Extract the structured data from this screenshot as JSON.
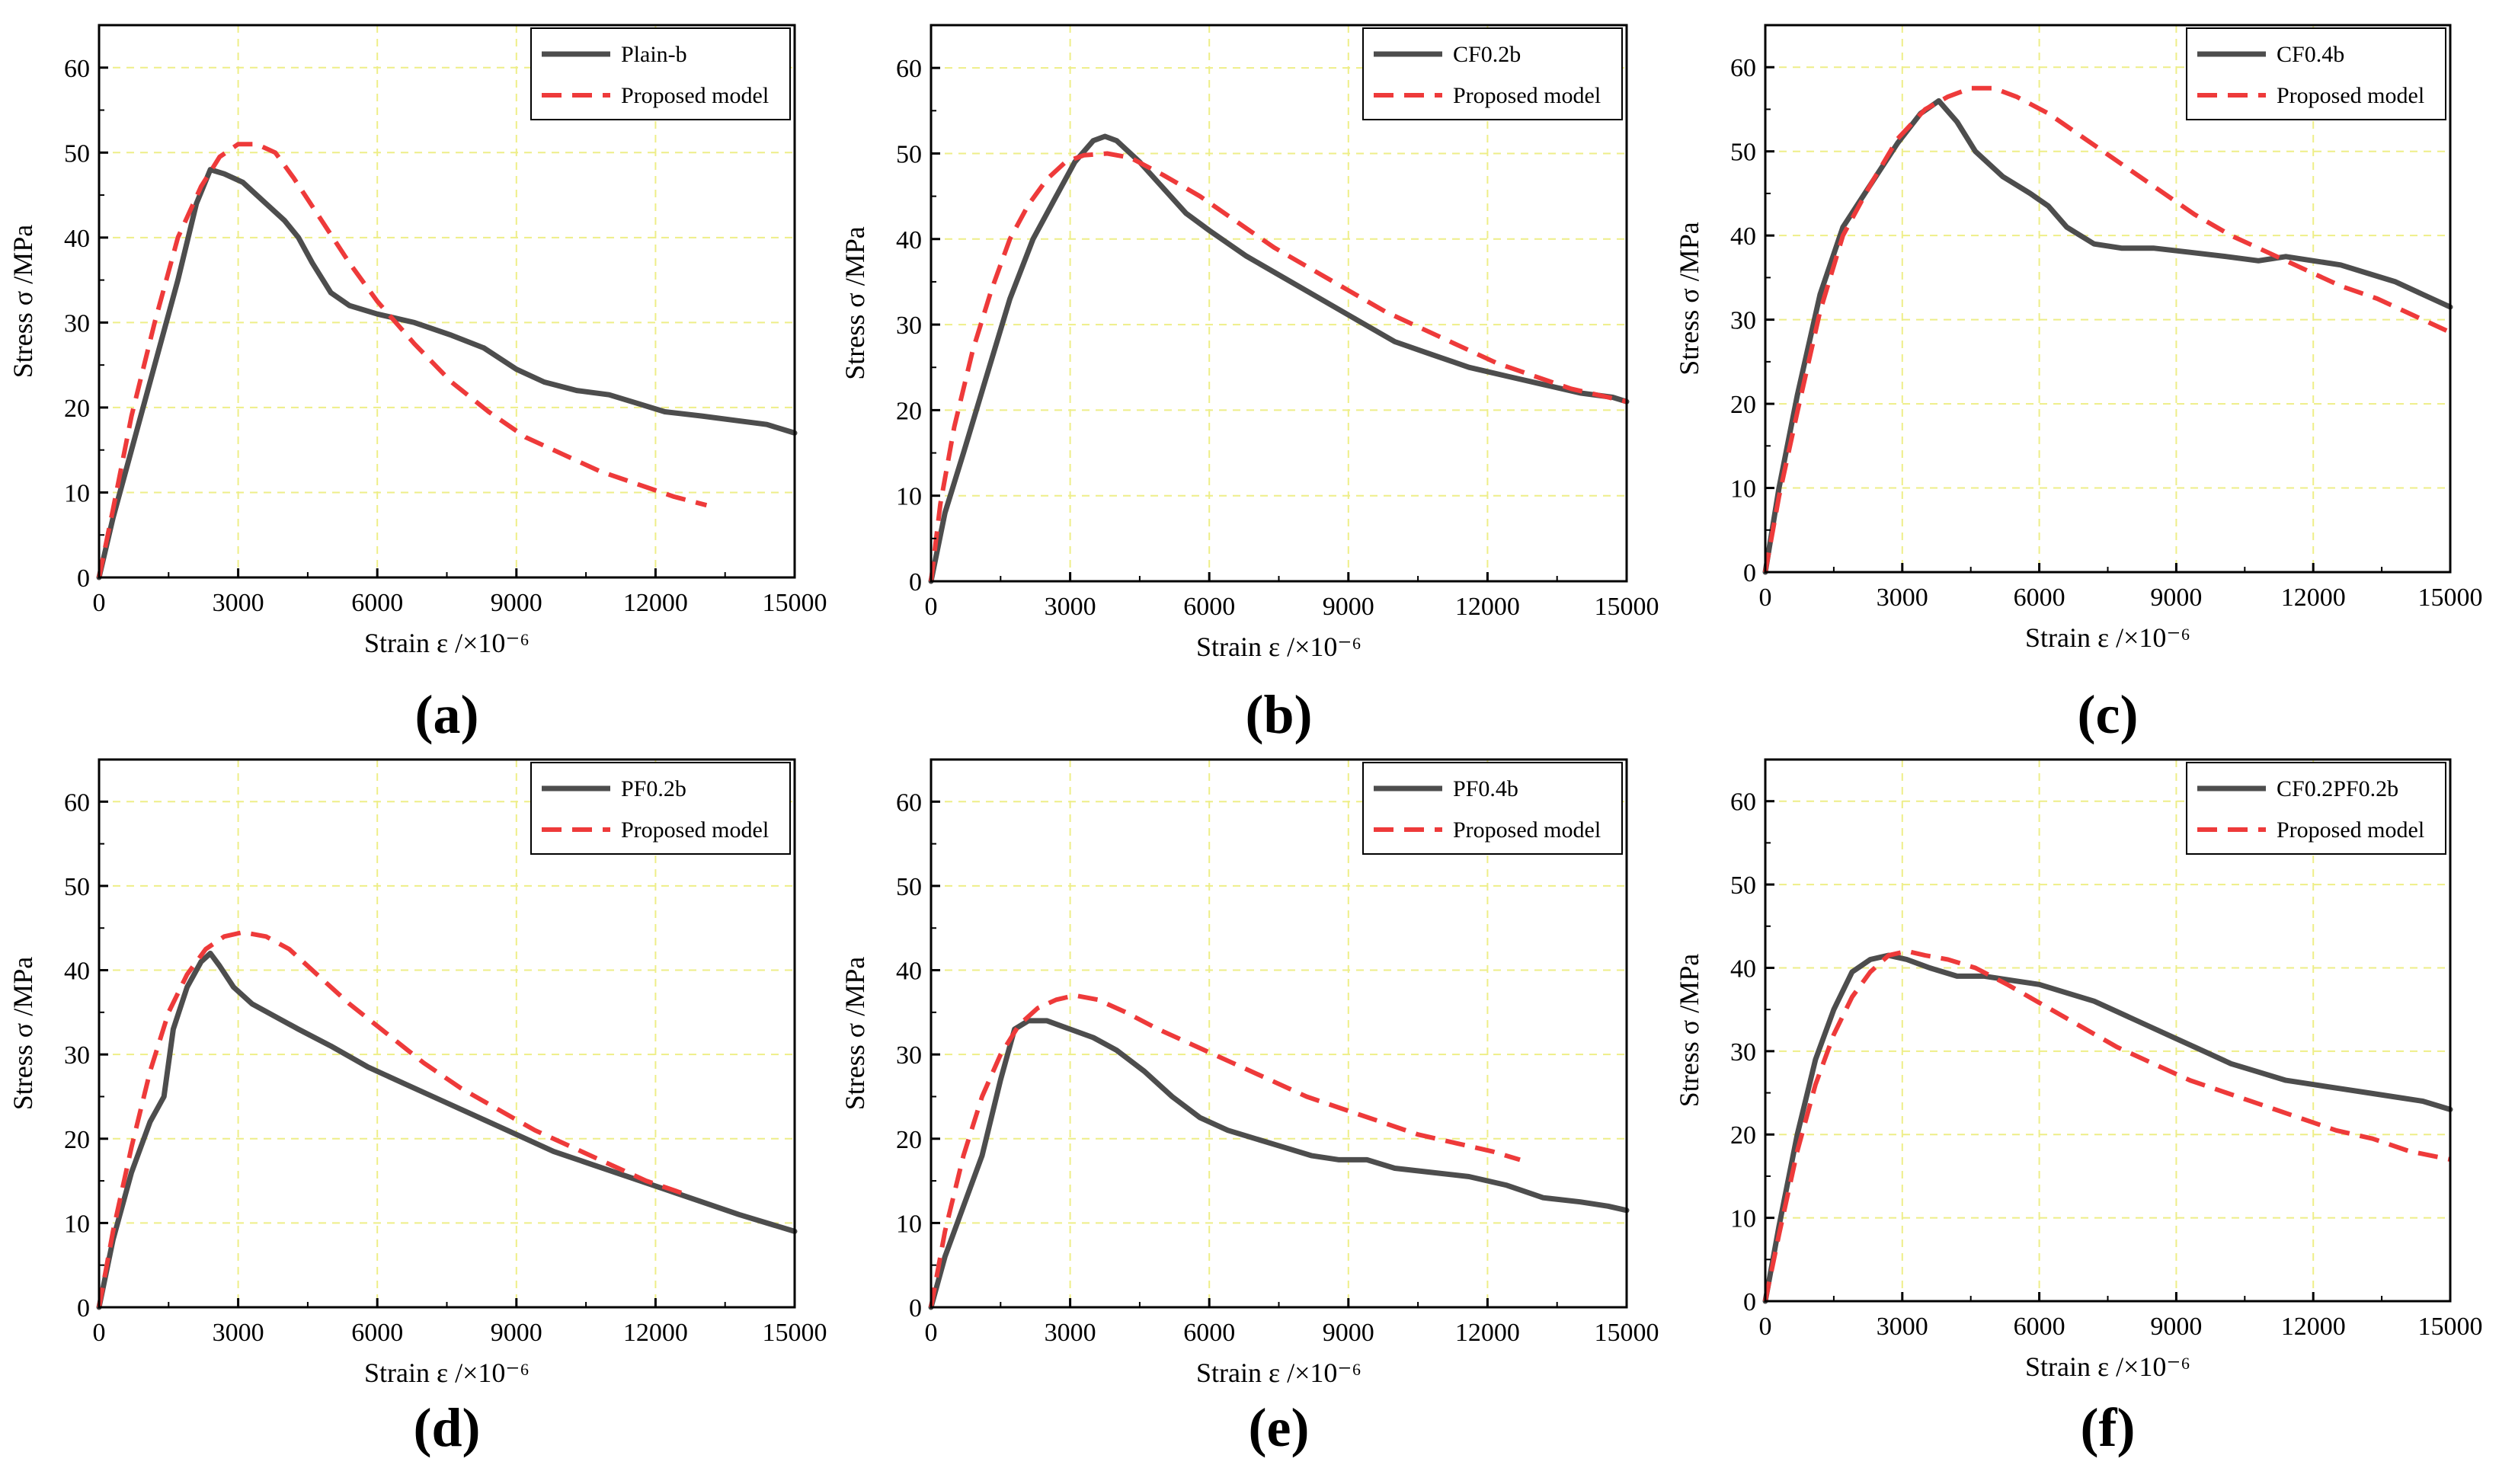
{
  "figure": {
    "colors": {
      "experimental": "#4d4d4d",
      "model": "#ee3a3a",
      "grid": "#eeee88",
      "axis": "#000000"
    }
  },
  "chart_data": [
    {
      "type": "line",
      "panel_label": "(a)",
      "xlabel": "Strain  ε /×10⁻⁶",
      "ylabel": "Stress σ /MPa",
      "xlim": [
        0,
        15000
      ],
      "ylim": [
        0,
        65
      ],
      "xticks": [
        0,
        3000,
        6000,
        9000,
        12000,
        15000
      ],
      "yticks": [
        0,
        10,
        20,
        30,
        40,
        50,
        60
      ],
      "xtick_labels": [
        "0",
        "3000",
        "6000",
        "9000",
        "12000",
        "15000"
      ],
      "ytick_labels": [
        "0",
        "10",
        "20",
        "30",
        "40",
        "50",
        "60"
      ],
      "legend_position": "top-right",
      "series": [
        {
          "name": "Plain-b",
          "style": "solid",
          "x": [
            0,
            300,
            700,
            1200,
            1700,
            2100,
            2400,
            2700,
            3100,
            3600,
            4000,
            4300,
            4600,
            5000,
            5400,
            6000,
            6800,
            7600,
            8300,
            9000,
            9600,
            10300,
            11000,
            11600,
            12200,
            13000,
            13700,
            14400,
            15000
          ],
          "y": [
            0,
            7,
            15,
            25,
            35,
            44,
            48,
            47.5,
            46.5,
            44,
            42,
            40,
            37,
            33.5,
            32,
            31,
            30,
            28.5,
            27,
            24.5,
            23,
            22,
            21.5,
            20.5,
            19.5,
            19,
            18.5,
            18,
            17
          ]
        },
        {
          "name": "Proposed model",
          "style": "dashed",
          "x": [
            0,
            300,
            700,
            1200,
            1700,
            2200,
            2600,
            3000,
            3400,
            3800,
            4200,
            4800,
            5400,
            6000,
            6800,
            7600,
            8400,
            9200,
            10000,
            10800,
            11600,
            12400,
            13100
          ],
          "y": [
            0,
            8,
            19,
            30,
            40,
            46,
            49.5,
            51,
            51,
            50,
            47,
            42,
            37,
            32.5,
            27.5,
            23,
            19.5,
            16.5,
            14.5,
            12.5,
            11,
            9.5,
            8.5
          ]
        }
      ]
    },
    {
      "type": "line",
      "panel_label": "(b)",
      "xlabel": "Strain  ε /×10⁻⁶",
      "ylabel": "Stress σ /MPa",
      "xlim": [
        0,
        15000
      ],
      "ylim": [
        0,
        65
      ],
      "xticks": [
        0,
        3000,
        6000,
        9000,
        12000,
        15000
      ],
      "yticks": [
        0,
        10,
        20,
        30,
        40,
        50,
        60
      ],
      "xtick_labels": [
        "0",
        "3000",
        "6000",
        "9000",
        "12000",
        "15000"
      ],
      "ytick_labels": [
        "0",
        "10",
        "20",
        "30",
        "40",
        "50",
        "60"
      ],
      "legend_position": "top-right",
      "series": [
        {
          "name": "CF0.2b",
          "style": "solid",
          "x": [
            0,
            300,
            700,
            1200,
            1700,
            2200,
            2700,
            3100,
            3500,
            3750,
            4000,
            4500,
            5000,
            5500,
            6000,
            6800,
            7600,
            8400,
            9200,
            10000,
            10800,
            11600,
            12400,
            13200,
            14000,
            14700,
            15000
          ],
          "y": [
            0,
            8,
            15,
            24,
            33,
            40,
            45,
            49,
            51.5,
            52,
            51.5,
            49,
            46,
            43,
            41,
            38,
            35.5,
            33,
            30.5,
            28,
            26.5,
            25,
            24,
            23,
            22,
            21.5,
            21
          ]
        },
        {
          "name": "Proposed model",
          "style": "dashed",
          "x": [
            0,
            200,
            500,
            900,
            1300,
            1700,
            2100,
            2500,
            2900,
            3300,
            3800,
            4300,
            5000,
            5800,
            6600,
            7400,
            8200,
            9000,
            9800,
            10600,
            11400,
            12200,
            13000,
            13800,
            14600,
            15000
          ],
          "y": [
            0,
            9,
            18,
            27,
            34,
            40,
            44,
            47,
            49,
            49.8,
            50,
            49.5,
            47.5,
            45,
            42,
            39,
            36.5,
            34,
            31.5,
            29.5,
            27.5,
            25.5,
            24,
            22.5,
            21.5,
            21
          ]
        }
      ]
    },
    {
      "type": "line",
      "panel_label": "(c)",
      "xlabel": "Strain  ε /×10⁻⁶",
      "ylabel": "Stress σ /MPa",
      "xlim": [
        0,
        15000
      ],
      "ylim": [
        0,
        65
      ],
      "xticks": [
        0,
        3000,
        6000,
        9000,
        12000,
        15000
      ],
      "yticks": [
        0,
        10,
        20,
        30,
        40,
        50,
        60
      ],
      "xtick_labels": [
        "0",
        "3000",
        "6000",
        "9000",
        "12000",
        "15000"
      ],
      "ytick_labels": [
        "0",
        "10",
        "20",
        "30",
        "40",
        "50",
        "60"
      ],
      "legend_position": "top-right",
      "series": [
        {
          "name": "CF0.4b",
          "style": "solid",
          "x": [
            0,
            300,
            700,
            1200,
            1700,
            2300,
            2900,
            3400,
            3800,
            4200,
            4600,
            5200,
            5800,
            6200,
            6600,
            7200,
            7800,
            8500,
            9300,
            10100,
            10800,
            11400,
            12000,
            12600,
            13200,
            13800,
            14400,
            15000
          ],
          "y": [
            0,
            10,
            21,
            33,
            41,
            46,
            51,
            54.5,
            56,
            53.5,
            50,
            47,
            45,
            43.5,
            41,
            39,
            38.5,
            38.5,
            38,
            37.5,
            37,
            37.5,
            37,
            36.5,
            35.5,
            34.5,
            33,
            31.5
          ]
        },
        {
          "name": "Proposed model",
          "style": "dashed",
          "x": [
            0,
            300,
            700,
            1200,
            1700,
            2300,
            2900,
            3500,
            4000,
            4500,
            5000,
            5500,
            6200,
            7000,
            7800,
            8600,
            9400,
            10200,
            11000,
            11800,
            12600,
            13400,
            14200,
            15000
          ],
          "y": [
            0,
            9,
            19,
            31,
            40,
            46,
            51.5,
            55,
            56.5,
            57.5,
            57.5,
            56.5,
            54.5,
            51.5,
            48.5,
            45.5,
            42.5,
            40,
            38,
            36,
            34,
            32.5,
            30.5,
            28.5
          ]
        }
      ]
    },
    {
      "type": "line",
      "panel_label": "(d)",
      "xlabel": "Strain  ε /×10⁻⁶",
      "ylabel": "Stress σ /MPa",
      "xlim": [
        0,
        15000
      ],
      "ylim": [
        0,
        65
      ],
      "xticks": [
        0,
        3000,
        6000,
        9000,
        12000,
        15000
      ],
      "yticks": [
        0,
        10,
        20,
        30,
        40,
        50,
        60
      ],
      "xtick_labels": [
        "0",
        "3000",
        "6000",
        "9000",
        "12000",
        "15000"
      ],
      "ytick_labels": [
        "0",
        "10",
        "20",
        "30",
        "40",
        "50",
        "60"
      ],
      "legend_position": "top-right",
      "series": [
        {
          "name": "PF0.2b",
          "style": "solid",
          "x": [
            0,
            300,
            700,
            1100,
            1400,
            1600,
            1900,
            2200,
            2400,
            2600,
            2900,
            3300,
            3800,
            4300,
            5000,
            5800,
            6600,
            7400,
            8200,
            9000,
            9800,
            10600,
            11400,
            12200,
            13000,
            13800,
            14400,
            15000
          ],
          "y": [
            0,
            8,
            16,
            22,
            25,
            33,
            38,
            41,
            42,
            40.5,
            38,
            36,
            34.5,
            33,
            31,
            28.5,
            26.5,
            24.5,
            22.5,
            20.5,
            18.5,
            17,
            15.5,
            14,
            12.5,
            11,
            10,
            9
          ]
        },
        {
          "name": "Proposed model",
          "style": "dashed",
          "x": [
            0,
            300,
            700,
            1100,
            1500,
            1900,
            2300,
            2700,
            3100,
            3600,
            4100,
            4700,
            5400,
            6200,
            7000,
            7800,
            8600,
            9400,
            10200,
            11000,
            11800,
            12600
          ],
          "y": [
            0,
            9,
            19,
            28,
            35,
            39.5,
            42.5,
            44,
            44.5,
            44,
            42.5,
            39.5,
            36,
            32.5,
            29,
            26,
            23.5,
            21,
            19,
            17,
            15,
            13.5
          ]
        }
      ]
    },
    {
      "type": "line",
      "panel_label": "(e)",
      "xlabel": "Strain  ε /×10⁻⁶",
      "ylabel": "Stress σ /MPa",
      "xlim": [
        0,
        15000
      ],
      "ylim": [
        0,
        65
      ],
      "xticks": [
        0,
        3000,
        6000,
        9000,
        12000,
        15000
      ],
      "yticks": [
        0,
        10,
        20,
        30,
        40,
        50,
        60
      ],
      "xtick_labels": [
        "0",
        "3000",
        "6000",
        "9000",
        "12000",
        "15000"
      ],
      "ytick_labels": [
        "0",
        "10",
        "20",
        "30",
        "40",
        "50",
        "60"
      ],
      "legend_position": "top-right",
      "series": [
        {
          "name": "PF0.4b",
          "style": "solid",
          "x": [
            0,
            300,
            700,
            1100,
            1500,
            1800,
            2100,
            2500,
            3000,
            3500,
            4000,
            4600,
            5200,
            5800,
            6400,
            7000,
            7600,
            8200,
            8800,
            9400,
            10000,
            10800,
            11600,
            12400,
            13200,
            14000,
            14600,
            15000
          ],
          "y": [
            0,
            6,
            12,
            18,
            27,
            33,
            34,
            34,
            33,
            32,
            30.5,
            28,
            25,
            22.5,
            21,
            20,
            19,
            18,
            17.5,
            17.5,
            16.5,
            16,
            15.5,
            14.5,
            13,
            12.5,
            12,
            11.5
          ]
        },
        {
          "name": "Proposed model",
          "style": "dashed",
          "x": [
            0,
            300,
            700,
            1100,
            1500,
            1900,
            2300,
            2700,
            3100,
            3600,
            4200,
            4900,
            5700,
            6500,
            7300,
            8100,
            8900,
            9700,
            10500,
            11300,
            12100,
            12700
          ],
          "y": [
            0,
            9,
            18,
            25,
            30,
            33.5,
            35.5,
            36.5,
            37,
            36.5,
            35,
            33,
            31,
            29,
            27,
            25,
            23.5,
            22,
            20.5,
            19.5,
            18.5,
            17.5
          ]
        }
      ]
    },
    {
      "type": "line",
      "panel_label": "(f)",
      "xlabel": "Strain  ε /×10⁻⁶",
      "ylabel": "Stress σ /MPa",
      "xlim": [
        0,
        15000
      ],
      "ylim": [
        0,
        65
      ],
      "xticks": [
        0,
        3000,
        6000,
        9000,
        12000,
        15000
      ],
      "yticks": [
        0,
        10,
        20,
        30,
        40,
        50,
        60
      ],
      "xtick_labels": [
        "0",
        "3000",
        "6000",
        "9000",
        "12000",
        "15000"
      ],
      "ytick_labels": [
        "0",
        "10",
        "20",
        "30",
        "40",
        "50",
        "60"
      ],
      "legend_position": "top-right",
      "series": [
        {
          "name": "CF0.2PF0.2b",
          "style": "solid",
          "x": [
            0,
            300,
            700,
            1100,
            1500,
            1900,
            2300,
            2700,
            3100,
            3600,
            4200,
            4800,
            5400,
            6000,
            6600,
            7200,
            7800,
            8400,
            9000,
            9600,
            10200,
            10800,
            11400,
            12000,
            12600,
            13200,
            13800,
            14400,
            15000
          ],
          "y": [
            0,
            9,
            20,
            29,
            35,
            39.5,
            41,
            41.5,
            41,
            40,
            39,
            39,
            38.5,
            38,
            37,
            36,
            34.5,
            33,
            31.5,
            30,
            28.5,
            27.5,
            26.5,
            26,
            25.5,
            25,
            24.5,
            24,
            23
          ]
        },
        {
          "name": "Proposed model",
          "style": "dashed",
          "x": [
            0,
            300,
            700,
            1100,
            1500,
            1900,
            2300,
            2700,
            3100,
            3500,
            4000,
            4600,
            5300,
            6100,
            6900,
            7700,
            8500,
            9300,
            10100,
            10900,
            11700,
            12500,
            13300,
            14100,
            15000
          ],
          "y": [
            0,
            8,
            18,
            26,
            32,
            36.5,
            39.5,
            41.5,
            42,
            41.5,
            41,
            40,
            38,
            35.5,
            33,
            30.5,
            28.5,
            26.5,
            25,
            23.5,
            22,
            20.5,
            19.5,
            18,
            17
          ]
        }
      ]
    }
  ]
}
